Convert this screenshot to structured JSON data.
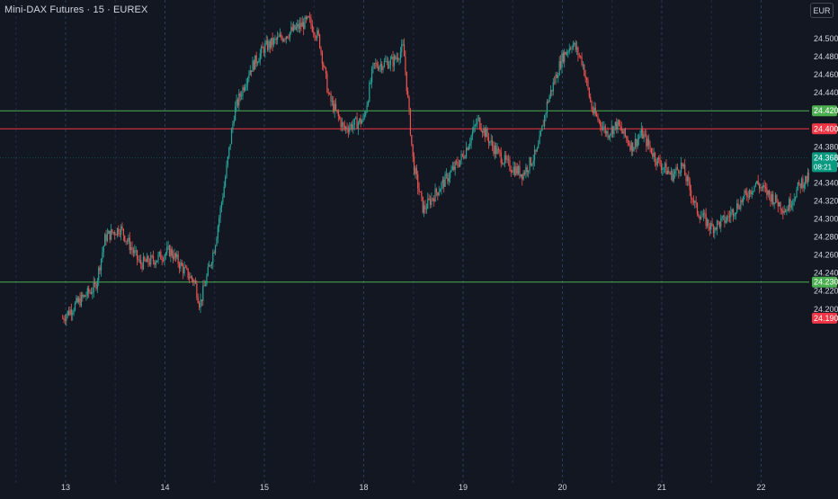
{
  "header": {
    "title": "Mini-DAX Futures · 15 · EUREX",
    "currency": "EUR"
  },
  "colors": {
    "background": "#131722",
    "grid": "#2a3a5c",
    "up": "#26a69a",
    "down": "#ef5350",
    "support": "#4caf50",
    "resistance": "#f23645",
    "text": "#d1d4dc"
  },
  "chart_data": {
    "type": "candlestick",
    "instrument": "Mini-DAX Futures",
    "interval": "15",
    "exchange": "EUREX",
    "currency": "EUR",
    "x_tick_labels": [
      "13",
      "14",
      "15",
      "18",
      "19",
      "20",
      "21",
      "22"
    ],
    "y_ticks": [
      24200,
      24220,
      24240,
      24260,
      24280,
      24300,
      24320,
      24340,
      24360,
      24380,
      24400,
      24420,
      24440,
      24460,
      24480,
      24500
    ],
    "y_tick_labels": [
      "24.200",
      "24.220",
      "24.240",
      "24.260",
      "24.280",
      "24.300",
      "24.320",
      "24.340",
      "24.360",
      "24.380",
      "24.400",
      "24.420",
      "24.440",
      "24.460",
      "24.480",
      "24.500"
    ],
    "ylim": [
      24190,
      24528
    ],
    "grid": {
      "vertical": true,
      "horizontal": false
    },
    "price_path": [
      {
        "day": 12.97,
        "price": 24190
      },
      {
        "day": 13.1,
        "price": 24205
      },
      {
        "day": 13.3,
        "price": 24225
      },
      {
        "day": 13.4,
        "price": 24280
      },
      {
        "day": 13.55,
        "price": 24290
      },
      {
        "day": 13.75,
        "price": 24250
      },
      {
        "day": 13.9,
        "price": 24255
      },
      {
        "day": 14.05,
        "price": 24265
      },
      {
        "day": 14.2,
        "price": 24242
      },
      {
        "day": 14.3,
        "price": 24230
      },
      {
        "day": 14.35,
        "price": 24205
      },
      {
        "day": 14.5,
        "price": 24270
      },
      {
        "day": 14.6,
        "price": 24340
      },
      {
        "day": 14.7,
        "price": 24420
      },
      {
        "day": 14.85,
        "price": 24465
      },
      {
        "day": 15.0,
        "price": 24490
      },
      {
        "day": 15.15,
        "price": 24500
      },
      {
        "day": 15.3,
        "price": 24510
      },
      {
        "day": 15.45,
        "price": 24520
      },
      {
        "day": 15.55,
        "price": 24500
      },
      {
        "day": 15.65,
        "price": 24435
      },
      {
        "day": 15.8,
        "price": 24400
      },
      {
        "day": 16.0,
        "price": 24410
      },
      {
        "day": 16.1,
        "price": 24470
      },
      {
        "day": 16.3,
        "price": 24475
      },
      {
        "day": 16.4,
        "price": 24490
      },
      {
        "day": 16.5,
        "price": 24360
      },
      {
        "day": 16.6,
        "price": 24310
      },
      {
        "day": 16.8,
        "price": 24340
      },
      {
        "day": 17.0,
        "price": 24370
      },
      {
        "day": 17.15,
        "price": 24410
      },
      {
        "day": 17.3,
        "price": 24380
      },
      {
        "day": 17.45,
        "price": 24360
      },
      {
        "day": 17.6,
        "price": 24350
      },
      {
        "day": 17.75,
        "price": 24375
      },
      {
        "day": 17.85,
        "price": 24430
      },
      {
        "day": 18.0,
        "price": 24480
      },
      {
        "day": 18.1,
        "price": 24495
      },
      {
        "day": 18.2,
        "price": 24475
      },
      {
        "day": 18.3,
        "price": 24420
      },
      {
        "day": 18.45,
        "price": 24395
      },
      {
        "day": 18.55,
        "price": 24405
      },
      {
        "day": 18.7,
        "price": 24380
      },
      {
        "day": 18.8,
        "price": 24395
      },
      {
        "day": 18.95,
        "price": 24365
      },
      {
        "day": 19.1,
        "price": 24348
      },
      {
        "day": 19.2,
        "price": 24360
      },
      {
        "day": 19.35,
        "price": 24310
      },
      {
        "day": 19.5,
        "price": 24290
      },
      {
        "day": 19.65,
        "price": 24300
      },
      {
        "day": 19.8,
        "price": 24320
      },
      {
        "day": 19.95,
        "price": 24340
      },
      {
        "day": 20.1,
        "price": 24325
      },
      {
        "day": 20.25,
        "price": 24310
      },
      {
        "day": 20.4,
        "price": 24340
      },
      {
        "day": 20.55,
        "price": 24350
      },
      {
        "day": 20.65,
        "price": 24360
      },
      {
        "day": 20.8,
        "price": 24310
      },
      {
        "day": 20.95,
        "price": 24300
      },
      {
        "day": 21.05,
        "price": 24290
      },
      {
        "day": 21.2,
        "price": 24270
      },
      {
        "day": 21.35,
        "price": 24255
      },
      {
        "day": 21.5,
        "price": 24230
      },
      {
        "day": 21.6,
        "price": 24265
      },
      {
        "day": 21.7,
        "price": 24300
      },
      {
        "day": 21.8,
        "price": 24320
      },
      {
        "day": 21.9,
        "price": 24330
      },
      {
        "day": 22.0,
        "price": 24310
      },
      {
        "day": 22.1,
        "price": 24300
      },
      {
        "day": 22.2,
        "price": 24270
      },
      {
        "day": 22.3,
        "price": 24290
      },
      {
        "day": 22.37,
        "price": 24368
      }
    ],
    "horizontal_levels": [
      {
        "price": 24420,
        "label": "24.420",
        "color": "#4caf50"
      },
      {
        "price": 24400,
        "label": "24.400",
        "color": "#f23645"
      },
      {
        "price": 24230,
        "label": "24.230",
        "color": "#4caf50"
      }
    ],
    "last_price": {
      "price": 24368,
      "label": "24.368",
      "countdown": "08:21",
      "color": "#089981"
    },
    "bottom_marker": {
      "price": 24190,
      "label": "24.190",
      "color": "#f23645"
    }
  }
}
